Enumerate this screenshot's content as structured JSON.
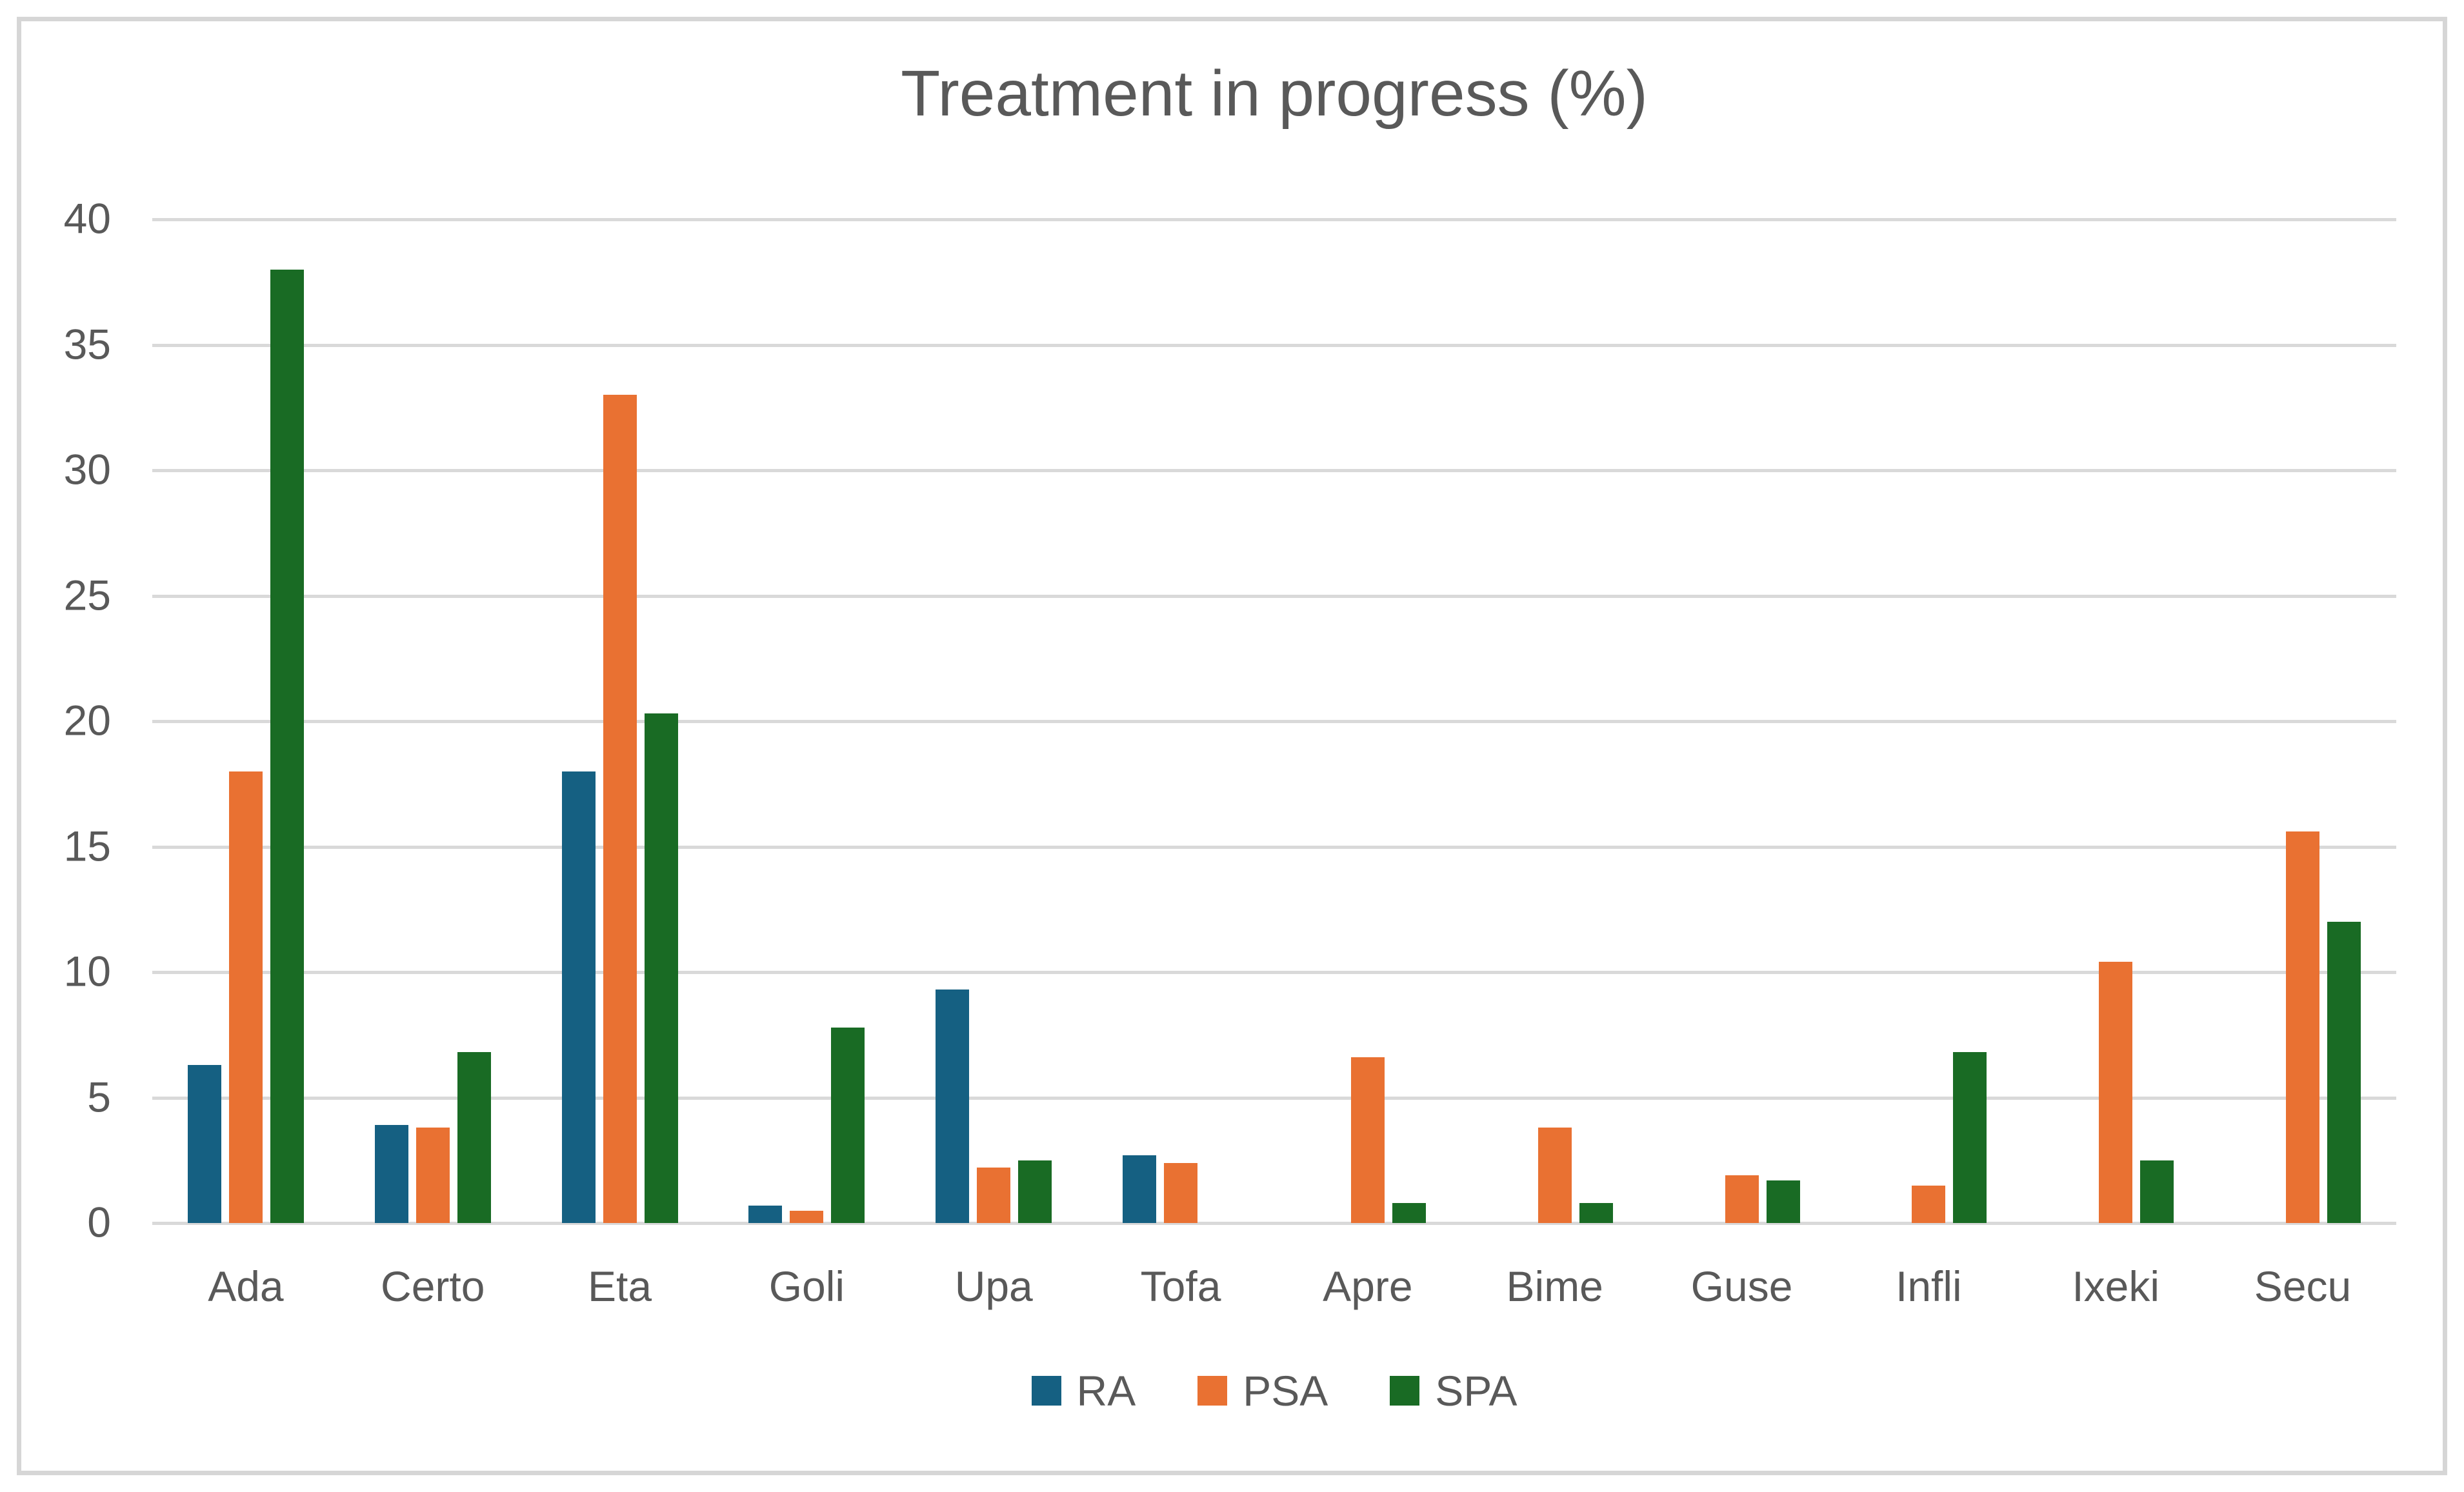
{
  "chart_data": {
    "type": "bar",
    "title": "Treatment in progress (%)",
    "categories": [
      "Ada",
      "Certo",
      "Eta",
      "Goli",
      "Upa",
      "Tofa",
      "Apre",
      "Bime",
      "Guse",
      "Infli",
      "Ixeki",
      "Secu"
    ],
    "series": [
      {
        "name": "RA",
        "color": "#156082",
        "values": [
          6.3,
          3.9,
          18,
          0.7,
          9.3,
          2.7,
          0,
          0,
          0,
          0,
          0,
          0
        ]
      },
      {
        "name": "PSA",
        "color": "#E97132",
        "values": [
          18,
          3.8,
          33,
          0.5,
          2.2,
          2.4,
          6.6,
          3.8,
          1.9,
          1.5,
          10.4,
          15.6
        ]
      },
      {
        "name": "SPA",
        "color": "#196B24",
        "values": [
          38,
          6.8,
          20.3,
          7.8,
          2.5,
          0,
          0.8,
          0.8,
          1.7,
          6.8,
          2.5,
          12
        ]
      }
    ],
    "xlabel": "",
    "ylabel": "",
    "ylim": [
      0,
      40
    ],
    "yticks": [
      0,
      5,
      10,
      15,
      20,
      25,
      30,
      35,
      40
    ],
    "grid": true,
    "legend_position": "bottom"
  },
  "theme": {
    "background": "#FFFFFF",
    "frame_border": "#D6D6D6",
    "gridline_color": "#D9D9D9",
    "text_color": "#595959"
  }
}
